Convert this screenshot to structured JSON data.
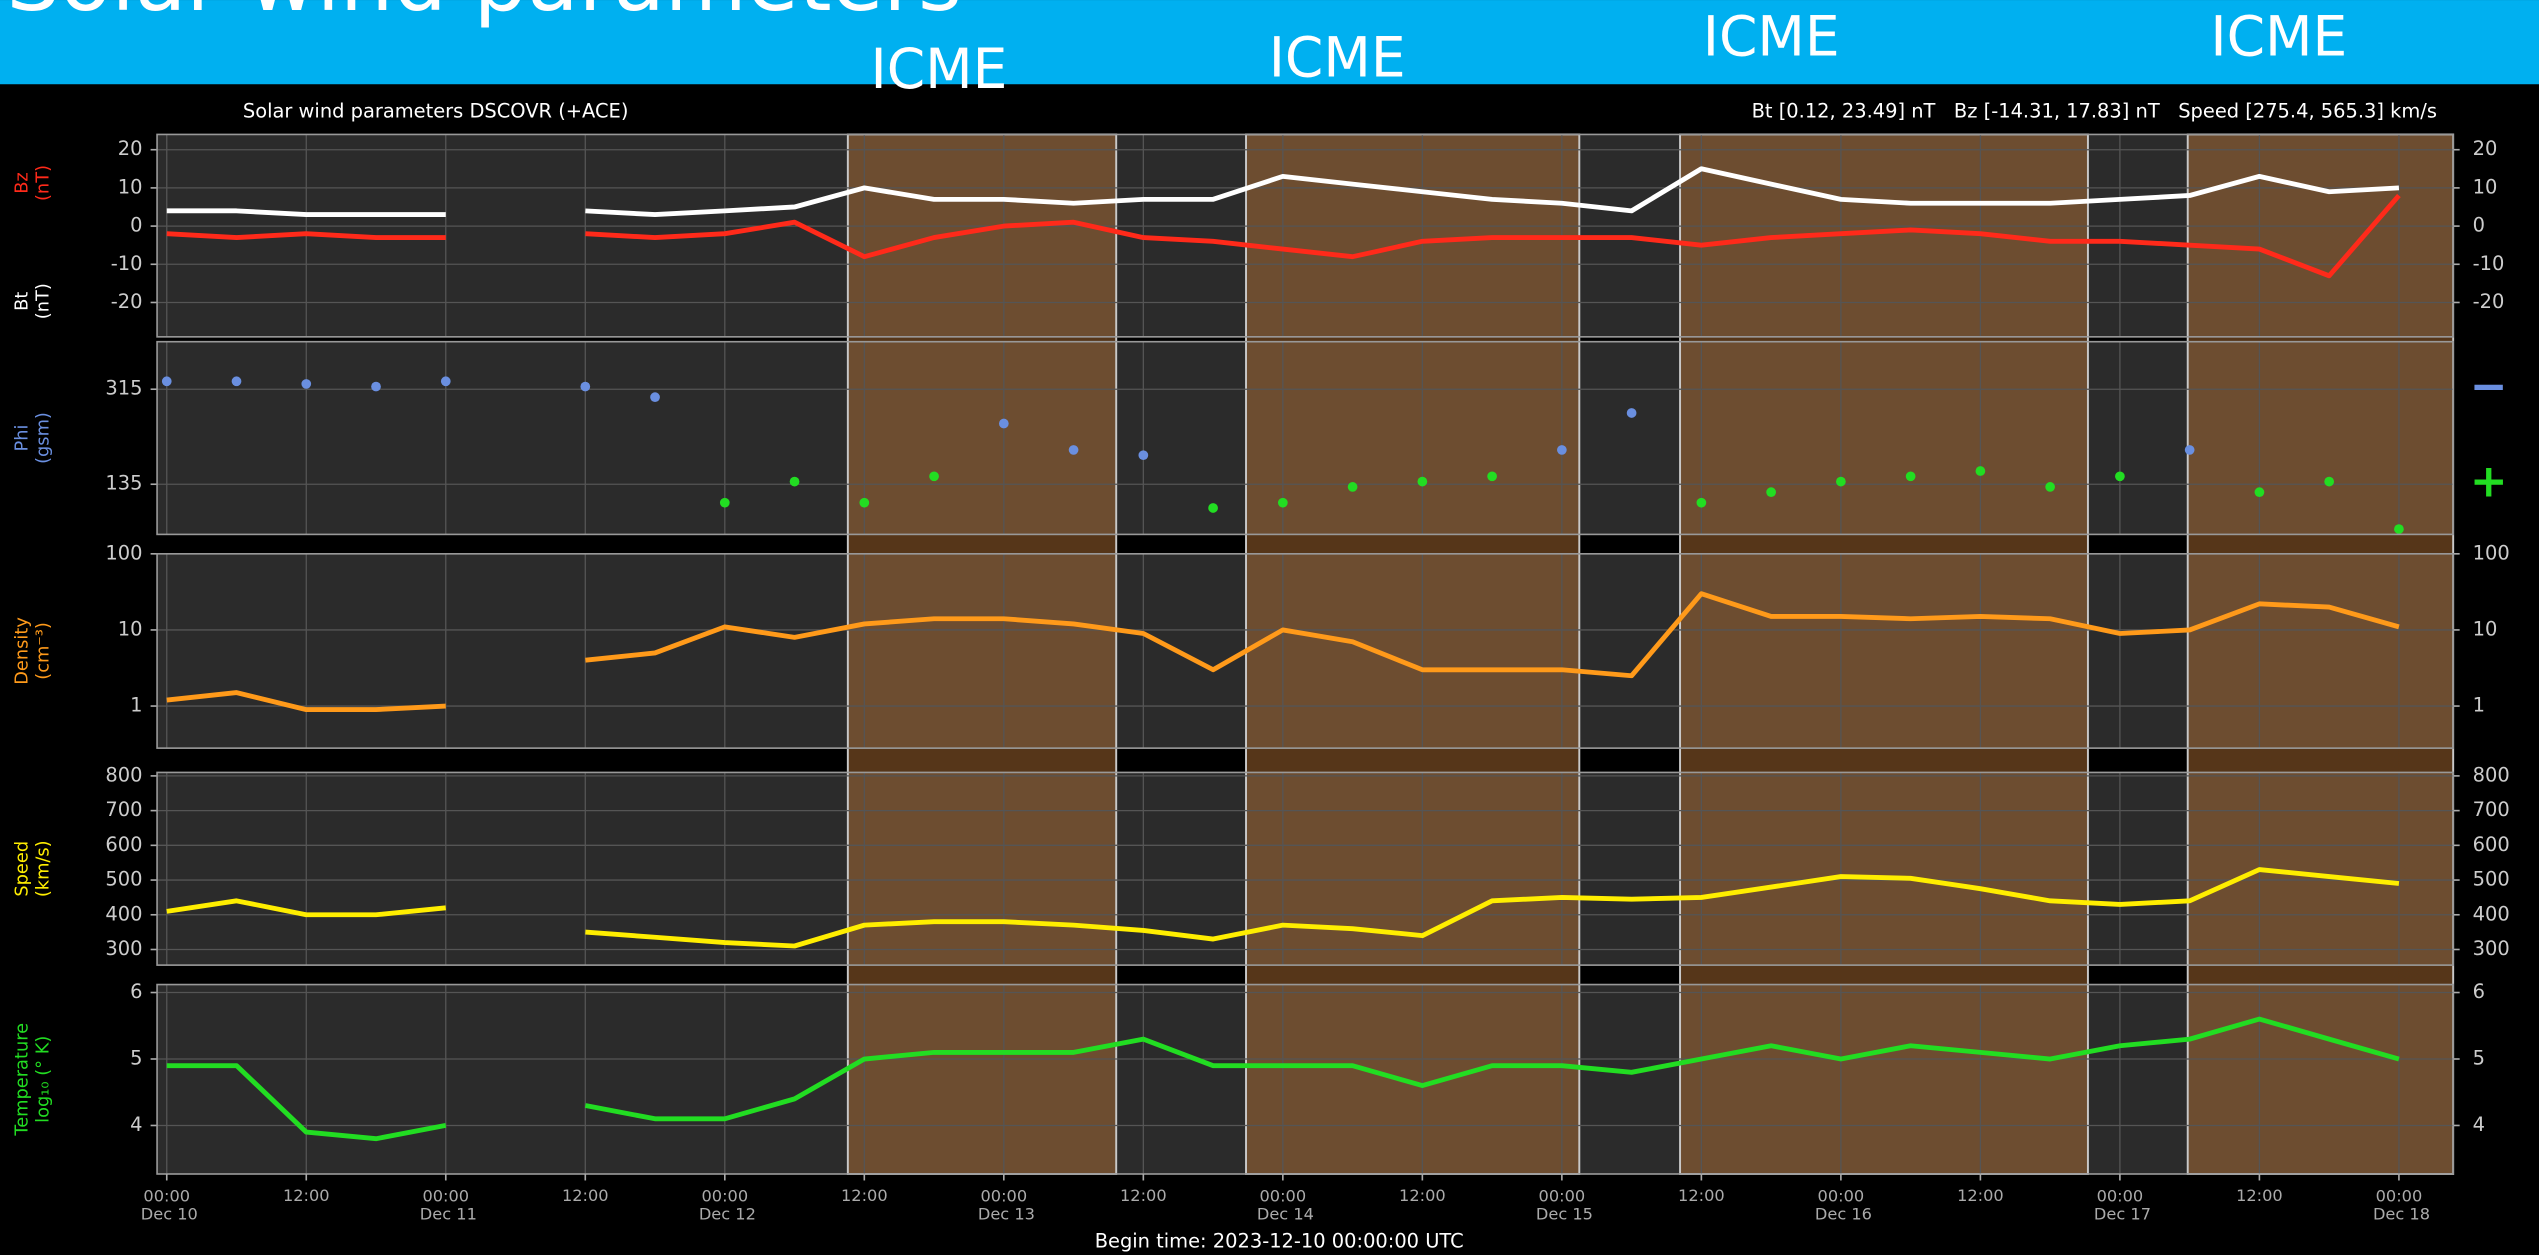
{
  "heading": "Solar wind parameters",
  "chart_data": {
    "type": "line",
    "title": "Solar wind parameters DSCOVR (+ACE)",
    "subtitle": "Bt [0.12, 23.49] nT   Bz [-14.31, 17.83] nT   Speed [275.4, 565.3] km/s",
    "footer": "Begin time: 2023-12-10 00:00:00 UTC",
    "xlim": [
      "2023-12-09T23:10",
      "2023-12-18T04:40"
    ],
    "xticks": [
      {
        "value": "2023-12-10T00:00",
        "label": "00:00 Dec 10"
      },
      {
        "value": "2023-12-10T12:00",
        "label": "12:00"
      },
      {
        "value": "2023-12-11T00:00",
        "label": "00:00 Dec 11"
      },
      {
        "value": "2023-12-11T12:00",
        "label": "12:00"
      },
      {
        "value": "2023-12-12T00:00",
        "label": "00:00 Dec 12"
      },
      {
        "value": "2023-12-12T12:00",
        "label": "12:00"
      },
      {
        "value": "2023-12-13T00:00",
        "label": "00:00 Dec 13"
      },
      {
        "value": "2023-12-13T12:00",
        "label": "12:00"
      },
      {
        "value": "2023-12-14T00:00",
        "label": "00:00 Dec 14"
      },
      {
        "value": "2023-12-14T12:00",
        "label": "12:00"
      },
      {
        "value": "2023-12-15T00:00",
        "label": "00:00 Dec 15"
      },
      {
        "value": "2023-12-15T12:00",
        "label": "12:00"
      },
      {
        "value": "2023-12-16T00:00",
        "label": "00:00 Dec 16"
      },
      {
        "value": "2023-12-16T12:00",
        "label": "12:00"
      },
      {
        "value": "2023-12-17T00:00",
        "label": "00:00 Dec 17"
      },
      {
        "value": "2023-12-17T12:00",
        "label": "12:00"
      },
      {
        "value": "2023-12-18T00:00",
        "label": "00:00 Dec 18"
      }
    ],
    "x": [
      "2023-12-10T00:00",
      "2023-12-10T06:00",
      "2023-12-10T12:00",
      "2023-12-10T18:00",
      "2023-12-11T00:00",
      "2023-12-11T06:00",
      "2023-12-11T12:00",
      "2023-12-11T18:00",
      "2023-12-12T00:00",
      "2023-12-12T06:00",
      "2023-12-12T12:00",
      "2023-12-12T18:00",
      "2023-12-13T00:00",
      "2023-12-13T06:00",
      "2023-12-13T12:00",
      "2023-12-13T18:00",
      "2023-12-14T00:00",
      "2023-12-14T06:00",
      "2023-12-14T12:00",
      "2023-12-14T18:00",
      "2023-12-15T00:00",
      "2023-12-15T06:00",
      "2023-12-15T12:00",
      "2023-12-15T18:00",
      "2023-12-16T00:00",
      "2023-12-16T06:00",
      "2023-12-16T12:00",
      "2023-12-16T18:00",
      "2023-12-17T00:00",
      "2023-12-17T06:00",
      "2023-12-17T12:00",
      "2023-12-17T18:00",
      "2023-12-18T00:00"
    ],
    "icme": [
      {
        "label": "ICME",
        "start": "2023-12-12T10:35",
        "end": "2023-12-13T09:40"
      },
      {
        "label": "ICME",
        "start": "2023-12-13T20:50",
        "end": "2023-12-15T01:30"
      },
      {
        "label": "ICME",
        "start": "2023-12-15T10:10",
        "end": "2023-12-16T21:15"
      },
      {
        "label": "ICME",
        "start": "2023-12-17T05:50",
        "end": "2023-12-18T04:40"
      }
    ],
    "panels": [
      {
        "ylim": [
          -29,
          24
        ],
        "yticks": [
          20,
          10,
          0,
          -10,
          -20
        ],
        "series": [
          {
            "name": "Bz",
            "unit": "(nT)",
            "color": "#ff2a1a",
            "style": "line",
            "values": [
              -2,
              -3,
              -2,
              -3,
              -3,
              null,
              -2,
              -3,
              -2,
              1,
              -8,
              -3,
              0,
              1,
              -3,
              -4,
              -6,
              -8,
              -4,
              -3,
              -3,
              -3,
              -5,
              -3,
              -2,
              -1,
              -2,
              -4,
              -4,
              -5,
              -6,
              -13,
              8
            ]
          },
          {
            "name": "Bt",
            "unit": "(nT)",
            "color": "#ffffff",
            "style": "line",
            "values": [
              4,
              4,
              3,
              3,
              3,
              null,
              4,
              3,
              4,
              5,
              10,
              7,
              7,
              6,
              7,
              7,
              13,
              11,
              9,
              7,
              6,
              4,
              15,
              11,
              7,
              6,
              6,
              6,
              7,
              8,
              13,
              9,
              10
            ]
          }
        ]
      },
      {
        "ylim": [
          40,
          405
        ],
        "yticks": [
          315,
          135
        ],
        "ylabel": [
          "Phi",
          "(gsm)"
        ],
        "ylabel_color": "#6a8fe0",
        "legend": "right",
        "series": [
          {
            "name": "−",
            "color": "#6a8fe0",
            "style": "dots",
            "values": [
              330,
              330,
              325,
              320,
              330,
              null,
              320,
              300,
              null,
              null,
              null,
              null,
              250,
              200,
              190,
              null,
              null,
              null,
              null,
              null,
              200,
              270,
              null,
              null,
              null,
              null,
              null,
              null,
              null,
              200,
              null,
              null,
              null
            ]
          },
          {
            "name": "+",
            "color": "#22dd22",
            "style": "dots",
            "values": [
              null,
              null,
              null,
              null,
              null,
              null,
              null,
              null,
              100,
              140,
              100,
              150,
              null,
              null,
              null,
              90,
              100,
              130,
              140,
              150,
              null,
              null,
              100,
              120,
              140,
              150,
              160,
              130,
              150,
              null,
              120,
              140,
              50
            ]
          }
        ]
      },
      {
        "ylim": [
          0.28,
          100
        ],
        "yticks": [
          100,
          10,
          1
        ],
        "log": true,
        "ylabel": [
          "Density",
          "(cm⁻³)"
        ],
        "ylabel_color": "#ff9a1a",
        "series": [
          {
            "color": "#ff9a1a",
            "style": "line",
            "values": [
              1.2,
              1.5,
              0.9,
              0.9,
              1.0,
              null,
              4,
              5,
              11,
              8,
              12,
              14,
              14,
              12,
              9,
              3,
              10,
              7,
              3,
              3,
              3,
              2.5,
              30,
              15,
              15,
              14,
              15,
              14,
              9,
              10,
              22,
              20,
              11
            ]
          }
        ]
      },
      {
        "ylim": [
          255,
          810
        ],
        "yticks": [
          800,
          700,
          600,
          500,
          400,
          300
        ],
        "ylabel": [
          "Speed",
          "(km/s)"
        ],
        "ylabel_color": "#ffee00",
        "series": [
          {
            "color": "#ffee00",
            "style": "line",
            "values": [
              410,
              440,
              400,
              400,
              420,
              null,
              350,
              335,
              320,
              310,
              370,
              380,
              380,
              370,
              355,
              330,
              370,
              360,
              340,
              440,
              450,
              445,
              450,
              480,
              510,
              505,
              475,
              440,
              430,
              440,
              530,
              510,
              490
            ]
          }
        ]
      },
      {
        "ylim": [
          3.27,
          6.12
        ],
        "yticks": [
          6,
          5,
          4
        ],
        "ylabel": [
          "Temperature",
          "log₁₀ (° K)"
        ],
        "ylabel_color": "#22dd22",
        "series": [
          {
            "color": "#22dd22",
            "style": "line",
            "values": [
              4.9,
              4.9,
              3.9,
              3.8,
              4.0,
              null,
              4.3,
              4.1,
              4.1,
              4.4,
              5.0,
              5.1,
              5.1,
              5.1,
              5.3,
              4.9,
              4.9,
              4.9,
              4.6,
              4.9,
              4.9,
              4.8,
              5.0,
              5.2,
              5.0,
              5.2,
              5.1,
              5.0,
              5.2,
              5.3,
              5.6,
              5.3,
              5.0
            ]
          }
        ]
      }
    ]
  }
}
